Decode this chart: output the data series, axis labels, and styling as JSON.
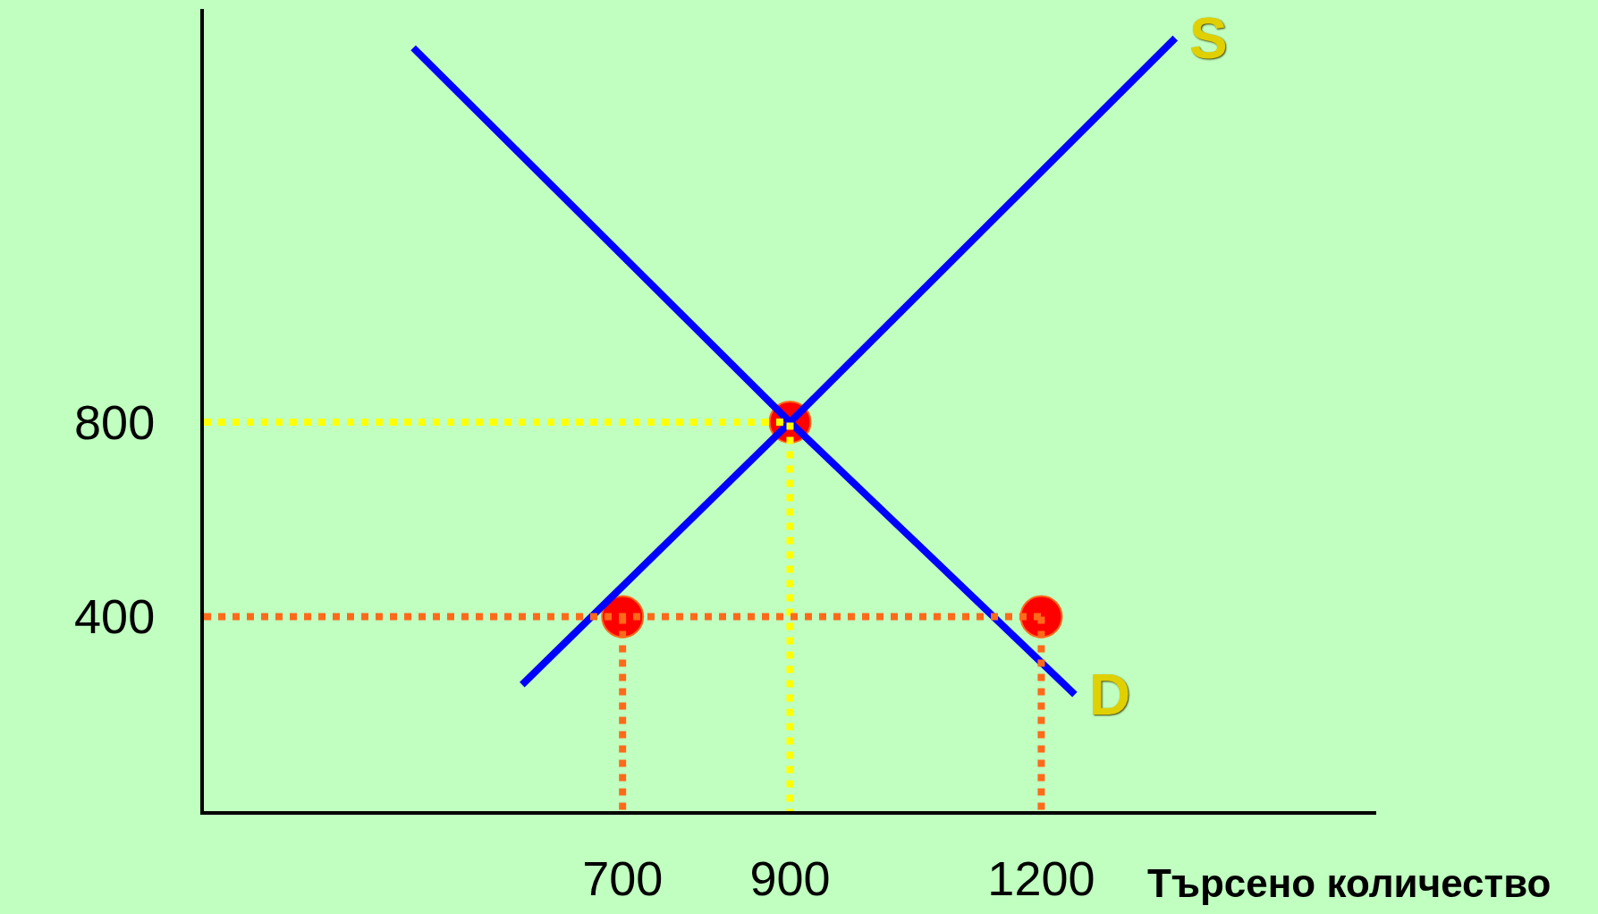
{
  "chart_data": {
    "type": "line",
    "xlabel": "Търсено количество",
    "xlim": [
      200,
      1600
    ],
    "ylim": [
      0,
      1650
    ],
    "xticks": [
      700,
      900,
      1200
    ],
    "yticks": [
      400,
      800
    ],
    "series": [
      {
        "type": "scatter",
        "color": "#ff0000",
        "x": [
          700,
          900,
          1200
        ],
        "values": [
          400,
          800,
          400
        ],
        "marker": "circle"
      },
      {
        "name": "S",
        "color": "#0000ff",
        "x": [
          580,
          900,
          1360
        ],
        "values": [
          260,
          800,
          1590
        ],
        "line_style": "solid",
        "marker": "none"
      },
      {
        "name": "D",
        "color": "#0000ff",
        "x": [
          450,
          900,
          1240
        ],
        "values": [
          1570,
          800,
          240
        ],
        "line_style": "solid",
        "marker": "none"
      },
      {
        "color": "#ffff00",
        "x": [
          200,
          900,
          900
        ],
        "values": [
          800,
          800,
          0
        ],
        "line_style": "dotted",
        "marker": "none"
      },
      {
        "color": "#ff6a1a",
        "x": [
          200,
          1200,
          null,
          700,
          700,
          null,
          1200,
          1200
        ],
        "values": [
          400,
          400,
          null,
          400,
          0,
          null,
          400,
          0
        ],
        "line_style": "dotted",
        "marker": "none"
      }
    ]
  }
}
